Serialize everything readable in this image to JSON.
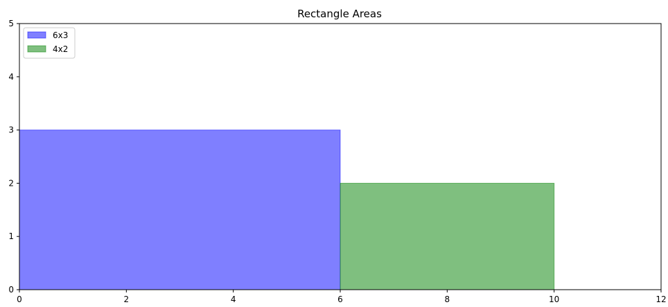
{
  "chart_data": {
    "type": "bar",
    "title": "Rectangle Areas",
    "xlabel": "",
    "ylabel": "",
    "xlim": [
      0,
      12
    ],
    "ylim": [
      0,
      5
    ],
    "xticks": [
      "0",
      "2",
      "4",
      "6",
      "8",
      "10",
      "12"
    ],
    "yticks": [
      "0",
      "1",
      "2",
      "3",
      "4",
      "5"
    ],
    "grid": false,
    "legend_position": "top-left",
    "series": [
      {
        "name": "6x3",
        "x_start": 0,
        "width": 6,
        "height": 3,
        "color": "#0000ff",
        "alpha": 0.5
      },
      {
        "name": "4x2",
        "x_start": 6,
        "width": 4,
        "height": 2,
        "color": "#008000",
        "alpha": 0.5
      }
    ]
  }
}
